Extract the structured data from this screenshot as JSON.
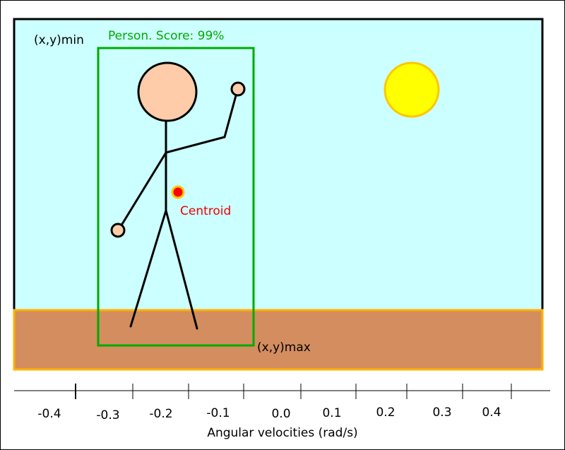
{
  "scene": {
    "min_label": "(x,y)min",
    "max_label": "(x,y)max",
    "detection_label": "Person. Score: 99%",
    "centroid_label": "Centroid"
  },
  "axis": {
    "label": "Angular velocities (rad/s)",
    "ticks": [
      "-0.4",
      "-0.3",
      "-0.2",
      "-0.1",
      "0.0",
      "0.1",
      "0.2",
      "0.3",
      "0.4"
    ]
  },
  "colors": {
    "sky": "#ccffff",
    "ground": "#d38d5f",
    "ground_border": "#ffb200",
    "box": "#00aa00",
    "skin": "#ffccaa",
    "sun": "#ffff00",
    "sun_border": "#ffc600",
    "centroid": "#ff0000",
    "centroid_label": "#ee0000"
  },
  "icons": {
    "sun": "sun-icon",
    "person": "stick-figure-icon",
    "centroid": "centroid-dot-icon"
  }
}
